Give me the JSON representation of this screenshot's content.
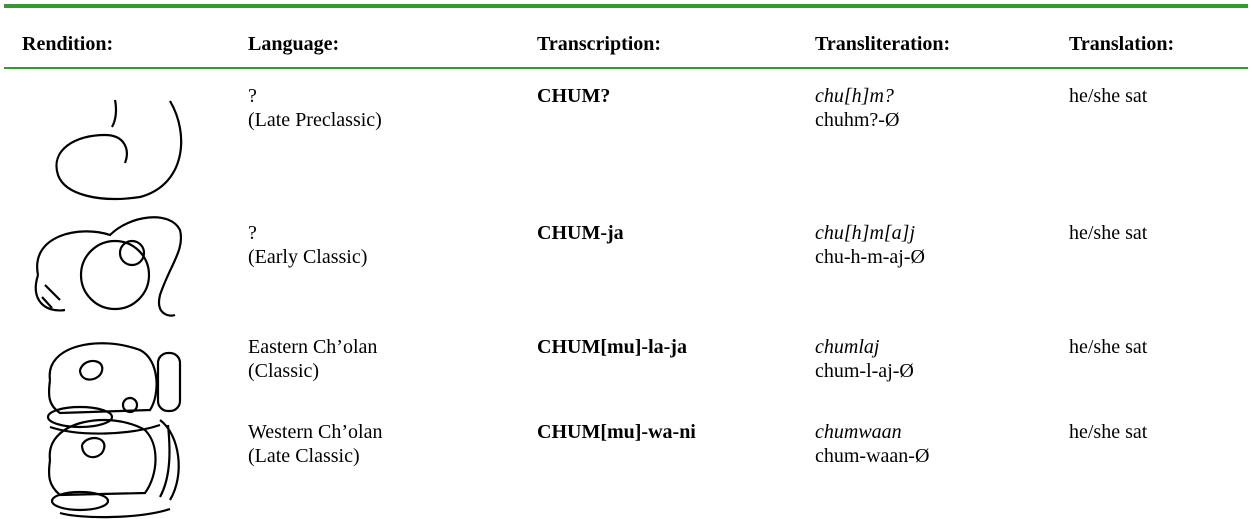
{
  "table": {
    "header": [
      "Rendition:",
      "Language:",
      "Transcription:",
      "Transliteration:",
      "Translation:"
    ],
    "rows": [
      {
        "language": [
          "?",
          "(Late Preclassic)"
        ],
        "transcription": "CHUM?",
        "transliteration": "chu[h]m?",
        "analysis": "chuhm?-Ø",
        "translation": "he/she sat"
      },
      {
        "language": [
          "?",
          "(Early Classic)"
        ],
        "transcription": "CHUM-ja",
        "transliteration": "chu[h]m[a]j",
        "analysis": "chu-h-m-aj-Ø",
        "translation": "he/she sat"
      },
      {
        "language": [
          "Eastern Ch’olan",
          "(Classic)"
        ],
        "transcription": "CHUM[mu]-la-ja",
        "transliteration": "chumlaj",
        "analysis": "chum-l-aj-Ø",
        "translation": "he/she sat"
      },
      {
        "language": [
          "Western Ch’olan",
          "(Late Classic)"
        ],
        "transcription": "CHUM[mu]-wa-ni",
        "transliteration": "chumwaan",
        "analysis": "chum-waan-Ø",
        "translation": "he/she sat"
      }
    ]
  }
}
